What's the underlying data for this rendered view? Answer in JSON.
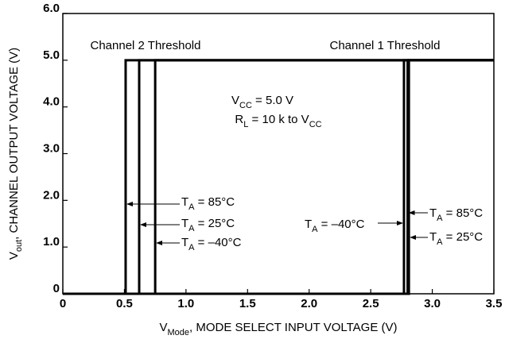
{
  "chart_data": {
    "type": "line",
    "x_label": [
      {
        "text": "V"
      },
      {
        "text": "Mode",
        "sub": true
      },
      {
        "text": ",  MODE SELECT INPUT VOLTAGE (V)"
      }
    ],
    "y_label": [
      {
        "text": "V"
      },
      {
        "text": "out",
        "sub": true
      },
      {
        "text": ", CHANNEL OUTPUT VOLTAGE (V)"
      }
    ],
    "xlim": [
      0,
      3.5
    ],
    "ylim": [
      0,
      6
    ],
    "xticks": [
      0,
      0.5,
      {
        "value": 1,
        "label": "1.0"
      },
      1.5,
      {
        "value": 2,
        "label": "2.0"
      },
      2.5,
      {
        "value": 3,
        "label": "3.0"
      },
      3.5
    ],
    "yticks": [
      0,
      {
        "value": 1,
        "label": "1.0"
      },
      {
        "value": 2,
        "label": "2.0"
      },
      {
        "value": 3,
        "label": "3.0"
      },
      {
        "value": 4,
        "label": "4.0"
      },
      {
        "value": 5,
        "label": "5.0"
      },
      {
        "value": 6,
        "label": "6.0"
      }
    ],
    "color": "#000000",
    "series": [
      {
        "x": [
          0,
          0.51,
          0.51,
          3.5
        ],
        "values": [
          0,
          0,
          5,
          5
        ]
      },
      {
        "x": [
          0,
          0.62,
          0.62,
          3.5
        ],
        "values": [
          0,
          0,
          5,
          5
        ]
      },
      {
        "x": [
          0,
          0.75,
          0.75,
          3.5
        ],
        "values": [
          0,
          0,
          5,
          5
        ]
      },
      {
        "x": [
          0,
          2.77,
          2.77,
          3.5
        ],
        "values": [
          0,
          0,
          5,
          5
        ]
      },
      {
        "x": [
          0,
          2.8,
          2.8,
          3.5
        ],
        "values": [
          0,
          0,
          5,
          5
        ]
      },
      {
        "x": [
          0,
          2.81,
          2.81,
          3.5
        ],
        "values": [
          0,
          0,
          5,
          5
        ]
      }
    ],
    "annotations": [
      {
        "parts": [
          {
            "text": "Channel 2 Threshold"
          }
        ]
      },
      {
        "parts": [
          {
            "text": "Channel 1 Threshold"
          }
        ]
      },
      {
        "parts": [
          {
            "text": "V"
          },
          {
            "text": "CC",
            "sub": true
          },
          {
            "text": " = 5.0 V"
          }
        ]
      },
      {
        "parts": [
          {
            "text": "R"
          },
          {
            "text": "L",
            "sub": true
          },
          {
            "text": " = 10 k to V"
          },
          {
            "text": "CC",
            "sub": true
          }
        ]
      },
      {
        "parts": [
          {
            "text": "T"
          },
          {
            "text": "A",
            "sub": true
          },
          {
            "text": " = 85°C"
          }
        ]
      },
      {
        "parts": [
          {
            "text": "T"
          },
          {
            "text": "A",
            "sub": true
          },
          {
            "text": " = 25°C"
          }
        ]
      },
      {
        "parts": [
          {
            "text": "T"
          },
          {
            "text": "A",
            "sub": true
          },
          {
            "text": " = –40°C"
          }
        ]
      },
      {
        "parts": [
          {
            "text": "T"
          },
          {
            "text": "A",
            "sub": true
          },
          {
            "text": " = –40°C"
          }
        ]
      },
      {
        "parts": [
          {
            "text": "T"
          },
          {
            "text": "A",
            "sub": true
          },
          {
            "text": " = 85°C"
          }
        ]
      },
      {
        "parts": [
          {
            "text": "T"
          },
          {
            "text": "A",
            "sub": true
          },
          {
            "text": " = 25°C"
          }
        ]
      }
    ]
  }
}
